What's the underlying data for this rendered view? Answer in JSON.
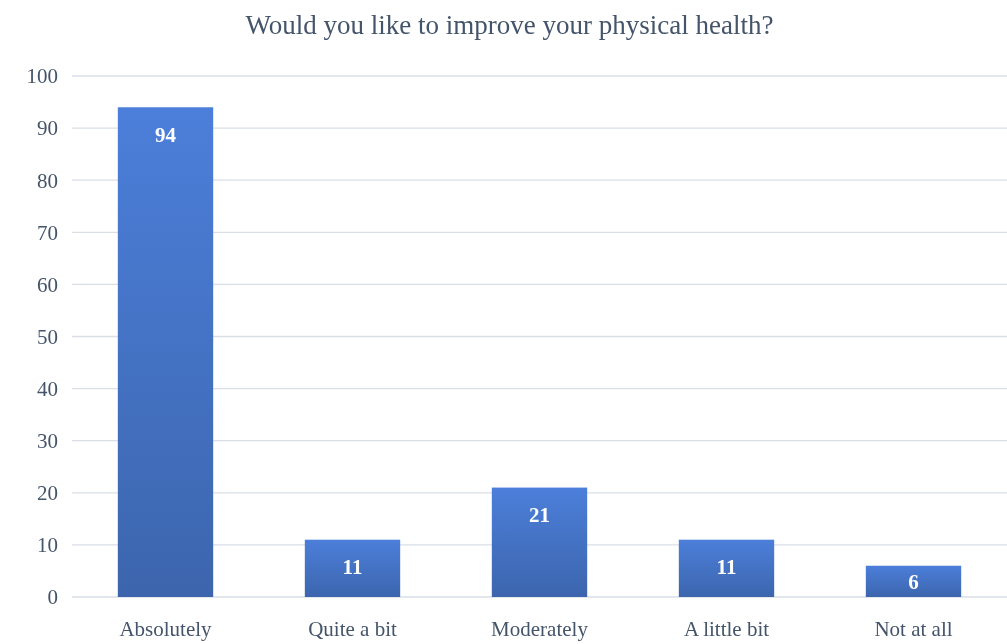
{
  "chart_data": {
    "type": "bar",
    "title": "Would you like to improve your physical health?",
    "categories": [
      "Absolutely",
      "Quite a bit",
      "Moderately",
      "A little bit",
      "Not at all"
    ],
    "values": [
      94,
      11,
      21,
      11,
      6
    ],
    "color": "#4472c4",
    "ylim": [
      0,
      100
    ],
    "yticks": [
      0,
      10,
      20,
      30,
      40,
      50,
      60,
      70,
      80,
      90,
      100
    ],
    "grid": "y",
    "data_labels": true
  }
}
